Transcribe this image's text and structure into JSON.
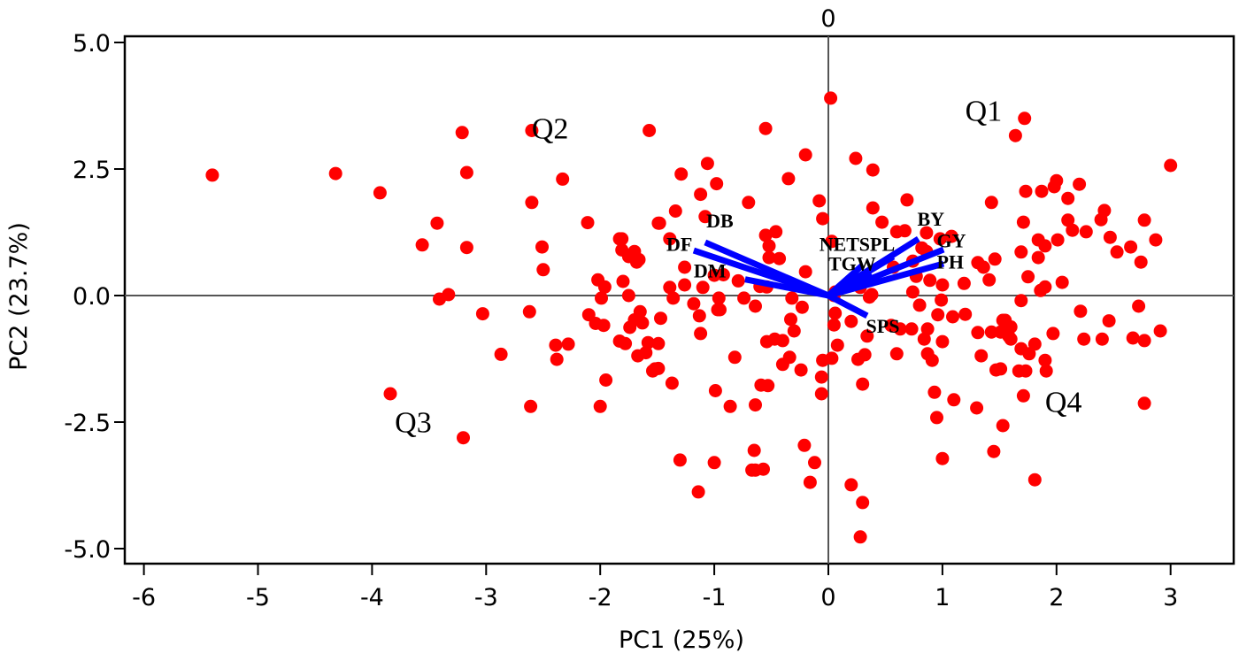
{
  "chart_data": {
    "type": "scatter",
    "subtype": "pca-biplot",
    "title": "",
    "xlabel": "PC1 (25%)",
    "ylabel": "PC2 (23.7%)",
    "xlim": [
      -6.16,
      3.55
    ],
    "ylim": [
      -5.3,
      5.15
    ],
    "x_ticks": [
      -6,
      -5,
      -4,
      -3,
      -2,
      -1,
      0,
      1,
      2,
      3
    ],
    "y_ticks": [
      5.0,
      2.5,
      0.0,
      -2.5,
      -5.0
    ],
    "y_tick_labels": [
      "5.0",
      "2.5",
      "0.0",
      "-2.5",
      "-5.0"
    ],
    "top_zero_label": "0",
    "grid": false,
    "zero_lines": true,
    "point_color": "#ff0000",
    "vector_color": "#0000ff",
    "quadrant_labels": [
      {
        "label": "Q1",
        "x": 1.2,
        "y": 3.45
      },
      {
        "label": "Q2",
        "x": -2.6,
        "y": 3.1
      },
      {
        "label": "Q3",
        "x": -3.8,
        "y": -2.7
      },
      {
        "label": "Q4",
        "x": 1.9,
        "y": -2.3
      }
    ],
    "vectors": [
      {
        "name": "DB",
        "x": -1.08,
        "y": 1.05,
        "label_x": -1.07,
        "label_y": 1.35
      },
      {
        "name": "DF",
        "x": -1.18,
        "y": 0.89,
        "label_x": -1.42,
        "label_y": 0.88
      },
      {
        "name": "DM",
        "x": -0.73,
        "y": 0.32,
        "label_x": -1.18,
        "label_y": 0.36
      },
      {
        "name": "NET",
        "x": 0.3,
        "y": 0.6,
        "label_x": -0.08,
        "label_y": 0.88
      },
      {
        "name": "SPL",
        "x": 0.57,
        "y": 0.77,
        "label_x": 0.27,
        "label_y": 0.88
      },
      {
        "name": "TGW",
        "x": 0.38,
        "y": 0.42,
        "label_x": 0.0,
        "label_y": 0.5
      },
      {
        "name": "BY",
        "x": 0.79,
        "y": 1.12,
        "label_x": 0.78,
        "label_y": 1.38
      },
      {
        "name": "GY",
        "x": 1.01,
        "y": 0.91,
        "label_x": 0.95,
        "label_y": 0.95
      },
      {
        "name": "PH",
        "x": 1.01,
        "y": 0.63,
        "label_x": 0.95,
        "label_y": 0.53
      },
      {
        "name": "SPS",
        "x": 0.34,
        "y": -0.4,
        "label_x": 0.33,
        "label_y": -0.73
      }
    ],
    "points": [
      [
        -5.4,
        2.38
      ],
      [
        -4.32,
        2.41
      ],
      [
        -3.93,
        2.03
      ],
      [
        -3.43,
        1.43
      ],
      [
        -3.56,
        1.0
      ],
      [
        -3.17,
        0.95
      ],
      [
        -3.21,
        3.22
      ],
      [
        -3.17,
        2.43
      ],
      [
        -3.41,
        -0.07
      ],
      [
        -3.33,
        0.02
      ],
      [
        -3.03,
        -0.36
      ],
      [
        -3.84,
        -1.94
      ],
      [
        -3.2,
        -2.81
      ],
      [
        -2.6,
        3.26
      ],
      [
        -2.6,
        1.84
      ],
      [
        -2.33,
        2.3
      ],
      [
        -2.51,
        0.96
      ],
      [
        -2.5,
        0.51
      ],
      [
        -2.62,
        -0.32
      ],
      [
        -2.39,
        -0.98
      ],
      [
        -2.28,
        -0.96
      ],
      [
        -2.38,
        -1.26
      ],
      [
        -2.87,
        -1.16
      ],
      [
        -2.61,
        -2.19
      ],
      [
        -1.57,
        3.26
      ],
      [
        -2.11,
        1.44
      ],
      [
        -1.83,
        1.12
      ],
      [
        -1.81,
        1.12
      ],
      [
        -1.81,
        0.9
      ],
      [
        -1.75,
        0.77
      ],
      [
        -1.7,
        0.87
      ],
      [
        -1.68,
        0.66
      ],
      [
        -1.66,
        0.71
      ],
      [
        -1.49,
        1.43
      ],
      [
        -1.8,
        0.28
      ],
      [
        -1.96,
        0.17
      ],
      [
        -2.02,
        0.31
      ],
      [
        -1.99,
        -0.05
      ],
      [
        -2.1,
        -0.38
      ],
      [
        -1.75,
        0.0
      ],
      [
        -2.04,
        -0.55
      ],
      [
        -1.97,
        -0.59
      ],
      [
        -1.65,
        -0.32
      ],
      [
        -1.83,
        -0.9
      ],
      [
        -1.78,
        -0.95
      ],
      [
        -1.74,
        -0.63
      ],
      [
        -1.6,
        -1.13
      ],
      [
        -1.67,
        -1.19
      ],
      [
        -1.7,
        -0.48
      ],
      [
        -1.63,
        -0.54
      ],
      [
        -1.47,
        -0.45
      ],
      [
        -1.58,
        -0.93
      ],
      [
        -1.54,
        -1.49
      ],
      [
        -1.52,
        -1.45
      ],
      [
        -2.0,
        -2.19
      ],
      [
        -1.95,
        -1.67
      ],
      [
        -1.29,
        2.4
      ],
      [
        -1.06,
        2.61
      ],
      [
        -0.98,
        2.21
      ],
      [
        -1.12,
        2.0
      ],
      [
        -0.7,
        1.84
      ],
      [
        -1.34,
        1.67
      ],
      [
        -1.48,
        1.43
      ],
      [
        -1.08,
        1.56
      ],
      [
        -0.55,
        3.3
      ],
      [
        -0.35,
        2.31
      ],
      [
        -0.2,
        2.78
      ],
      [
        -0.08,
        1.87
      ],
      [
        -0.05,
        1.52
      ],
      [
        -1.39,
        1.12
      ],
      [
        -0.55,
        1.19
      ],
      [
        -0.46,
        1.26
      ],
      [
        -0.52,
        0.98
      ],
      [
        -0.52,
        0.75
      ],
      [
        -0.43,
        0.73
      ],
      [
        -1.26,
        0.56
      ],
      [
        -1.0,
        0.4
      ],
      [
        -0.92,
        0.41
      ],
      [
        -0.79,
        0.29
      ],
      [
        -0.6,
        0.18
      ],
      [
        -0.54,
        0.17
      ],
      [
        -1.39,
        0.16
      ],
      [
        -1.26,
        0.21
      ],
      [
        -1.1,
        0.16
      ],
      [
        -0.2,
        0.47
      ],
      [
        -1.18,
        -0.16
      ],
      [
        -0.96,
        -0.05
      ],
      [
        -0.74,
        -0.05
      ],
      [
        -1.36,
        -0.05
      ],
      [
        -1.13,
        -0.4
      ],
      [
        -0.97,
        -0.28
      ],
      [
        -0.95,
        -0.28
      ],
      [
        -0.64,
        -0.21
      ],
      [
        -0.32,
        -0.05
      ],
      [
        -0.23,
        -0.23
      ],
      [
        -0.33,
        -0.47
      ],
      [
        -0.3,
        -0.7
      ],
      [
        -1.12,
        -0.75
      ],
      [
        -0.47,
        -0.86
      ],
      [
        -1.49,
        -0.95
      ],
      [
        -1.49,
        -1.44
      ],
      [
        -1.37,
        -1.73
      ],
      [
        -0.82,
        -1.22
      ],
      [
        -0.54,
        -0.91
      ],
      [
        -0.4,
        -0.89
      ],
      [
        -0.34,
        -1.22
      ],
      [
        -0.4,
        -1.36
      ],
      [
        -0.99,
        -1.88
      ],
      [
        -0.86,
        -2.19
      ],
      [
        -0.59,
        -1.77
      ],
      [
        -0.64,
        -2.16
      ],
      [
        -0.53,
        -1.78
      ],
      [
        -0.24,
        -1.47
      ],
      [
        -0.05,
        -1.28
      ],
      [
        -0.06,
        -1.61
      ],
      [
        -0.06,
        -1.94
      ],
      [
        -1.3,
        -3.25
      ],
      [
        -1.0,
        -3.3
      ],
      [
        -0.65,
        -3.06
      ],
      [
        -0.64,
        -3.45
      ],
      [
        -0.67,
        -3.45
      ],
      [
        -0.57,
        -3.43
      ],
      [
        -0.21,
        -2.96
      ],
      [
        -0.12,
        -3.3
      ],
      [
        -0.16,
        -3.69
      ],
      [
        -1.14,
        -3.88
      ],
      [
        0.02,
        3.9
      ],
      [
        0.24,
        2.71
      ],
      [
        0.39,
        2.48
      ],
      [
        0.69,
        1.89
      ],
      [
        0.39,
        1.73
      ],
      [
        1.43,
        1.84
      ],
      [
        0.47,
        1.45
      ],
      [
        1.64,
        3.16
      ],
      [
        1.72,
        3.5
      ],
      [
        0.03,
        1.07
      ],
      [
        0.6,
        1.26
      ],
      [
        0.67,
        1.28
      ],
      [
        0.82,
        0.94
      ],
      [
        0.86,
        1.24
      ],
      [
        1.08,
        1.17
      ],
      [
        0.98,
        1.12
      ],
      [
        0.86,
        0.87
      ],
      [
        0.74,
        0.68
      ],
      [
        0.57,
        0.56
      ],
      [
        1.31,
        0.65
      ],
      [
        1.46,
        0.72
      ],
      [
        0.74,
        0.07
      ],
      [
        0.77,
        0.38
      ],
      [
        0.89,
        0.3
      ],
      [
        1.0,
        0.21
      ],
      [
        1.36,
        0.56
      ],
      [
        1.41,
        0.31
      ],
      [
        0.06,
        0.07
      ],
      [
        0.28,
        0.16
      ],
      [
        0.38,
        0.02
      ],
      [
        1.19,
        0.24
      ],
      [
        0.99,
        -0.09
      ],
      [
        0.05,
        0.0
      ],
      [
        0.36,
        -0.03
      ],
      [
        0.8,
        -0.19
      ],
      [
        0.96,
        -0.38
      ],
      [
        1.2,
        -0.37
      ],
      [
        1.09,
        -0.42
      ],
      [
        0.06,
        -0.35
      ],
      [
        0.05,
        -0.58
      ],
      [
        0.2,
        -0.51
      ],
      [
        0.55,
        -0.59
      ],
      [
        0.73,
        -0.66
      ],
      [
        0.87,
        -0.66
      ],
      [
        0.63,
        -0.66
      ],
      [
        0.84,
        -0.86
      ],
      [
        1.0,
        -0.91
      ],
      [
        1.31,
        -0.73
      ],
      [
        1.43,
        -0.72
      ],
      [
        1.51,
        -0.72
      ],
      [
        1.6,
        -0.86
      ],
      [
        0.08,
        -0.98
      ],
      [
        0.34,
        -0.8
      ],
      [
        0.26,
        -1.26
      ],
      [
        0.32,
        -1.17
      ],
      [
        0.6,
        -1.15
      ],
      [
        0.87,
        -1.15
      ],
      [
        0.91,
        -1.28
      ],
      [
        1.34,
        -1.19
      ],
      [
        1.47,
        -1.47
      ],
      [
        1.51,
        -1.45
      ],
      [
        1.67,
        -1.49
      ],
      [
        0.03,
        -1.24
      ],
      [
        0.3,
        -1.75
      ],
      [
        0.93,
        -1.91
      ],
      [
        1.1,
        -2.06
      ],
      [
        1.3,
        -2.22
      ],
      [
        0.95,
        -2.41
      ],
      [
        1.53,
        -2.57
      ],
      [
        1.0,
        -3.22
      ],
      [
        1.81,
        -3.64
      ],
      [
        1.45,
        -3.08
      ],
      [
        0.2,
        -3.74
      ],
      [
        0.3,
        -4.09
      ],
      [
        0.28,
        -4.77
      ],
      [
        1.73,
        2.06
      ],
      [
        1.87,
        2.06
      ],
      [
        2.0,
        2.27
      ],
      [
        1.98,
        2.15
      ],
      [
        2.2,
        2.2
      ],
      [
        2.1,
        1.92
      ],
      [
        1.71,
        1.45
      ],
      [
        2.1,
        1.49
      ],
      [
        2.42,
        1.68
      ],
      [
        2.39,
        1.5
      ],
      [
        2.77,
        1.49
      ],
      [
        2.14,
        1.29
      ],
      [
        2.26,
        1.26
      ],
      [
        1.84,
        1.1
      ],
      [
        2.01,
        1.1
      ],
      [
        1.9,
        0.98
      ],
      [
        1.69,
        0.86
      ],
      [
        1.84,
        0.75
      ],
      [
        2.47,
        1.15
      ],
      [
        2.53,
        0.86
      ],
      [
        2.65,
        0.96
      ],
      [
        2.74,
        0.66
      ],
      [
        2.87,
        1.1
      ],
      [
        1.75,
        0.37
      ],
      [
        1.9,
        0.17
      ],
      [
        1.86,
        0.1
      ],
      [
        2.05,
        0.26
      ],
      [
        1.69,
        -0.1
      ],
      [
        3.0,
        2.57
      ],
      [
        1.53,
        -0.49
      ],
      [
        1.6,
        -0.62
      ],
      [
        1.97,
        -0.75
      ],
      [
        2.21,
        -0.31
      ],
      [
        2.46,
        -0.5
      ],
      [
        2.72,
        -0.21
      ],
      [
        2.24,
        -0.86
      ],
      [
        2.4,
        -0.86
      ],
      [
        2.67,
        -0.84
      ],
      [
        2.77,
        -0.89
      ],
      [
        2.91,
        -0.7
      ],
      [
        1.69,
        -1.05
      ],
      [
        1.81,
        -0.96
      ],
      [
        1.76,
        -1.15
      ],
      [
        1.9,
        -1.28
      ],
      [
        1.73,
        -1.49
      ],
      [
        1.91,
        -1.49
      ],
      [
        1.71,
        -1.98
      ],
      [
        2.77,
        -2.13
      ],
      [
        1.55,
        -0.49
      ],
      [
        1.58,
        -0.8
      ]
    ]
  }
}
